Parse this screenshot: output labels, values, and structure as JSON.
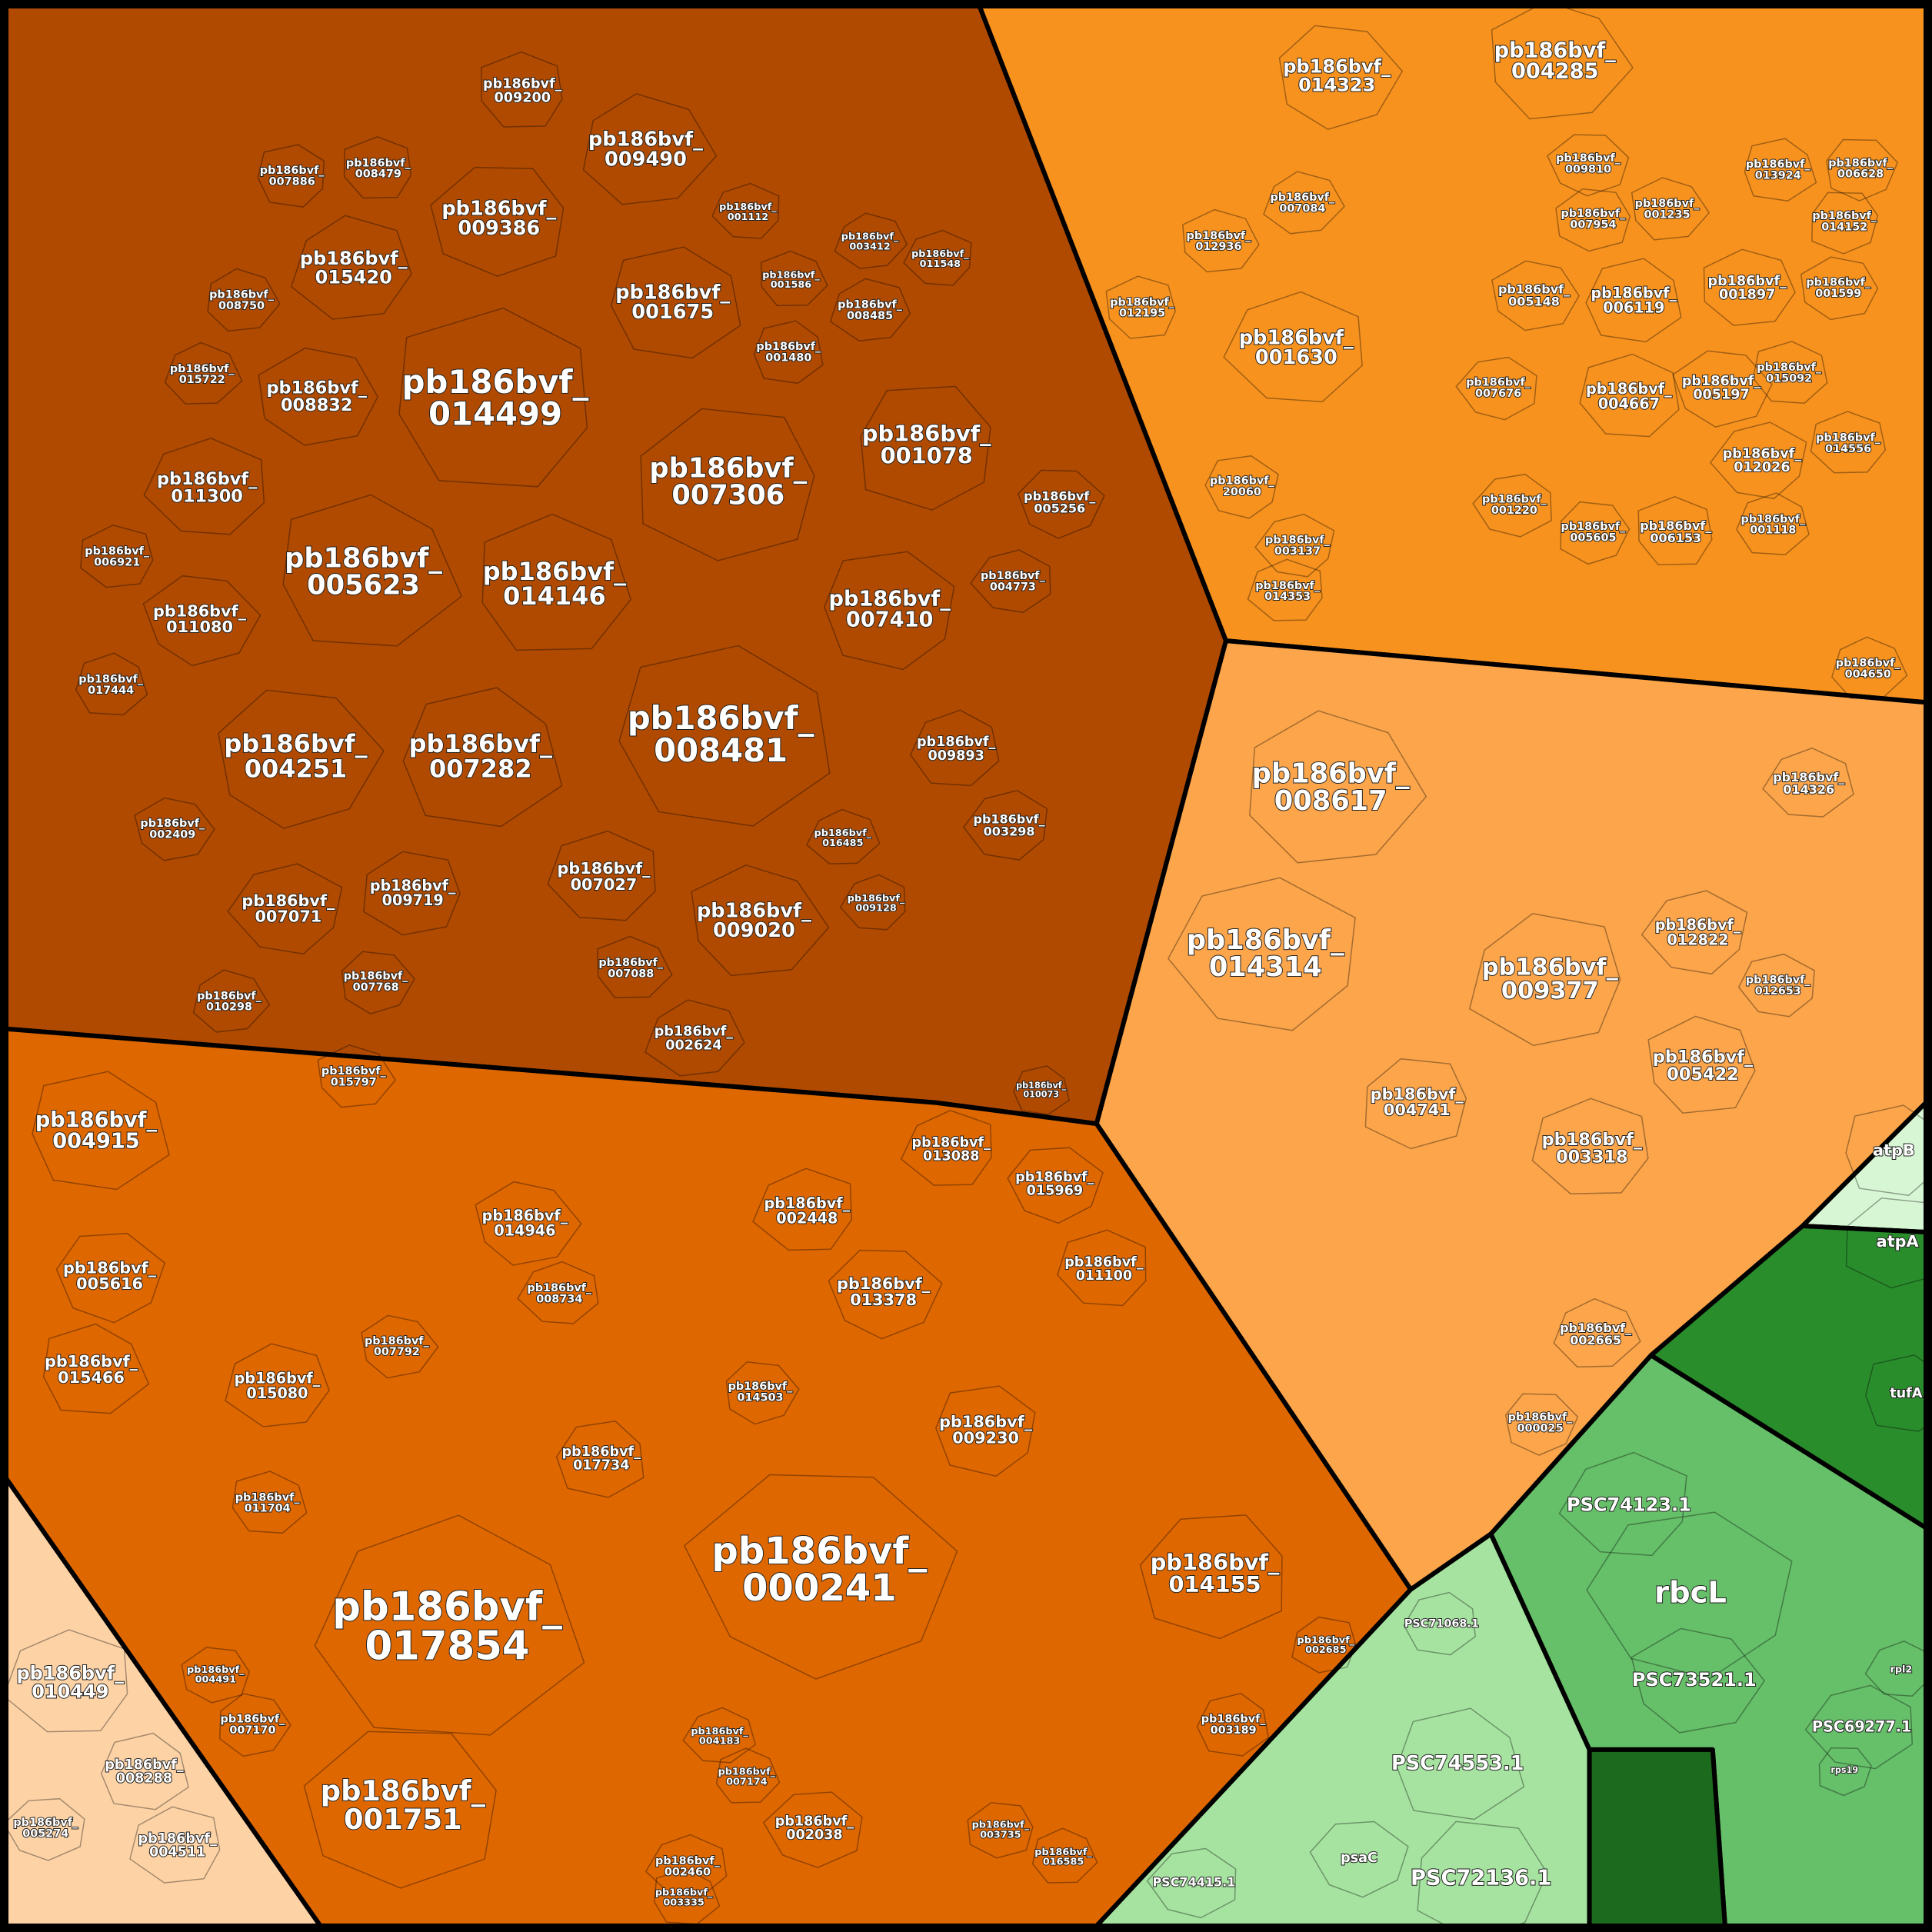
{
  "labels": [
    "pb186bvf_014499",
    "pb186bvf_007306",
    "pb186bvf_008481",
    "pb186bvf_005623",
    "pb186bvf_014146",
    "pb186bvf_007282",
    "pb186bvf_004251",
    "pb186bvf_001078",
    "pb186bvf_007410",
    "pb186bvf_009020",
    "pb186bvf_009490",
    "pb186bvf_009386",
    "pb186bvf_001675",
    "pb186bvf_015420",
    "pb186bvf_008832",
    "pb186bvf_011300",
    "pb186bvf_011080",
    "pb186bvf_007027",
    "pb186bvf_009719",
    "pb186bvf_007071",
    "pb186bvf_009200",
    "pb186bvf_009893",
    "pb186bvf_003298",
    "pb186bvf_005256",
    "pb186bvf_004773",
    "pb186bvf_002624",
    "pb186bvf_007088",
    "pb186bvf_007768",
    "pb186bvf_010298",
    "pb186bvf_002409",
    "pb186bvf_017444",
    "pb186bvf_006921",
    "pb186bvf_008750",
    "pb186bvf_015722",
    "pb186bvf_008479",
    "pb186bvf_007886",
    "pb186bvf_001480",
    "pb186bvf_008485",
    "pb186bvf_001586",
    "pb186bvf_001112",
    "pb186bvf_003412",
    "pb186bvf_011548",
    "pb186bvf_009128",
    "pb186bvf_016485",
    "pb186bvf_010073",
    "pb186bvf_014323",
    "pb186bvf_004285",
    "pb186bvf_001630",
    "pb186bvf_006119",
    "pb186bvf_004667",
    "pb186bvf_001897",
    "pb186bvf_005197",
    "pb186bvf_012026",
    "pb186bvf_006153",
    "pb186bvf_007084",
    "pb186bvf_012936",
    "pb186bvf_012195",
    "pb186bvf_20060",
    "pb186bvf_003137",
    "pb186bvf_014353",
    "pb186bvf_005148",
    "pb186bvf_007676",
    "pb186bvf_001220",
    "pb186bvf_005605",
    "pb186bvf_001235",
    "pb186bvf_007954",
    "pb186bvf_009810",
    "pb186bvf_013924",
    "pb186bvf_006628",
    "pb186bvf_014152",
    "pb186bvf_001599",
    "pb186bvf_015092",
    "pb186bvf_014556",
    "pb186bvf_001118",
    "pb186bvf_004650",
    "pb186bvf_008617",
    "pb186bvf_014314",
    "pb186bvf_009377",
    "pb186bvf_005422",
    "pb186bvf_003318",
    "pb186bvf_004741",
    "pb186bvf_012822",
    "pb186bvf_002665",
    "pb186bvf_014326",
    "pb186bvf_012653",
    "pb186bvf_000025",
    "pb186bvf_004915",
    "pb186bvf_005616",
    "pb186bvf_015466",
    "pb186bvf_017854",
    "pb186bvf_001751",
    "pb186bvf_000241",
    "pb186bvf_014155",
    "pb186bvf_009230",
    "pb186bvf_013378",
    "pb186bvf_002448",
    "pb186bvf_013088",
    "pb186bvf_015969",
    "pb186bvf_011100",
    "pb186bvf_014946",
    "pb186bvf_015080",
    "pb186bvf_017734",
    "pb186bvf_014503",
    "pb186bvf_008734",
    "pb186bvf_007792",
    "pb186bvf_015797",
    "pb186bvf_002038",
    "pb186bvf_002460",
    "pb186bvf_003735",
    "pb186bvf_011704",
    "pb186bvf_003189",
    "pb186bvf_002685",
    "pb186bvf_004183",
    "pb186bvf_007174",
    "pb186bvf_016585",
    "pb186bvf_003335",
    "pb186bvf_007170",
    "pb186bvf_004491",
    "pb186bvf_010449",
    "pb186bvf_008288",
    "pb186bvf_004511",
    "pb186bvf_005274",
    "rbcL",
    "PSC74123.1",
    "PSC73521.1",
    "PSC74553.1",
    "PSC72136.1",
    "PSC69277.1",
    "PSC74415.1",
    "PSC71068.1",
    "psaC",
    "atpB",
    "atpA",
    "tufA",
    "rpl2",
    "rps19"
  ]
}
